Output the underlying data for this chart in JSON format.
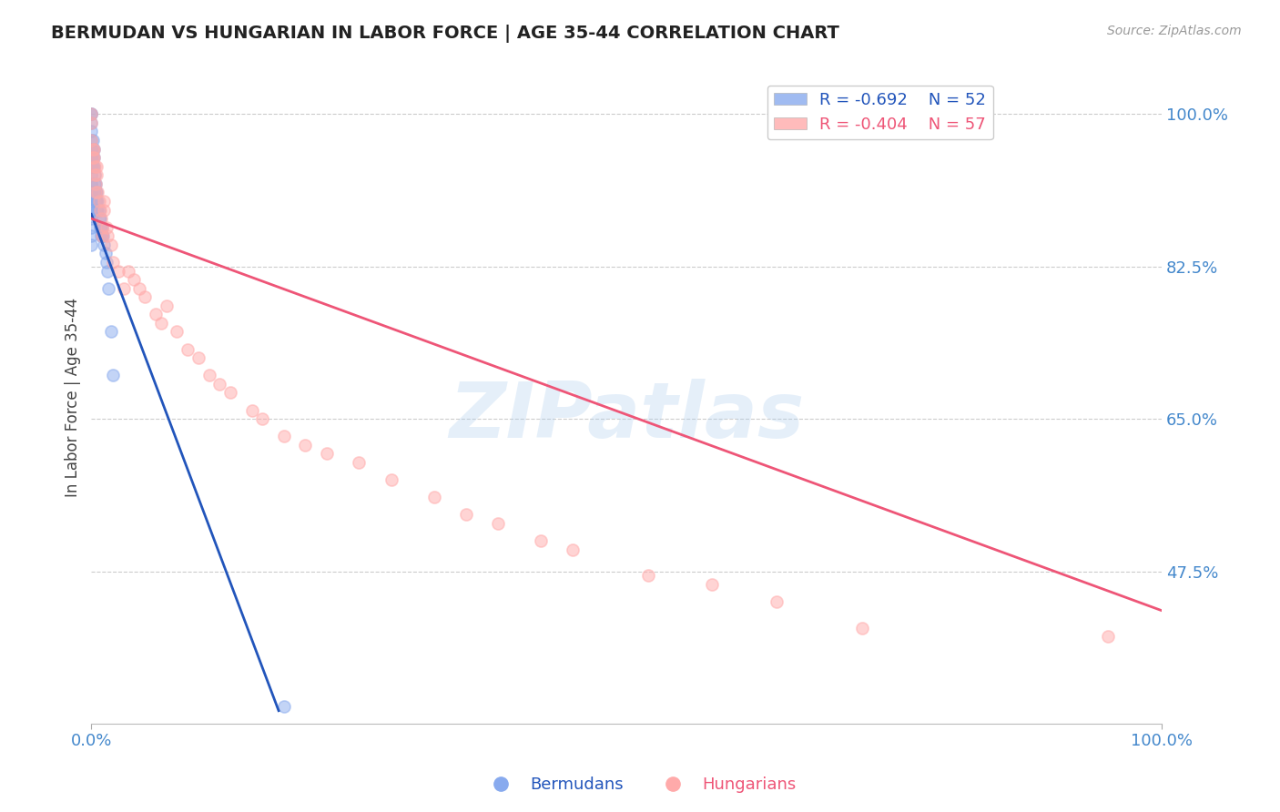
{
  "title": "BERMUDAN VS HUNGARIAN IN LABOR FORCE | AGE 35-44 CORRELATION CHART",
  "source": "Source: ZipAtlas.com",
  "ylabel": "In Labor Force | Age 35-44",
  "right_yticks": [
    0.475,
    0.65,
    0.825,
    1.0
  ],
  "right_ytick_labels": [
    "47.5%",
    "65.0%",
    "82.5%",
    "100.0%"
  ],
  "xlim": [
    0.0,
    1.0
  ],
  "ylim": [
    0.3,
    1.05
  ],
  "bermudan_color": "#88aaee",
  "hungarian_color": "#ffaaaa",
  "bermudan_line_color": "#2255bb",
  "hungarian_line_color": "#ee5577",
  "legend_bermudan_R": "-0.692",
  "legend_bermudan_N": "52",
  "legend_hungarian_R": "-0.404",
  "legend_hungarian_N": "57",
  "grid_color": "#cccccc",
  "watermark": "ZIPatlas",
  "title_color": "#222222",
  "axis_label_color": "#4488cc",
  "bermudan_x": [
    0.0,
    0.0,
    0.0,
    0.0,
    0.0,
    0.0,
    0.0,
    0.0,
    0.0,
    0.0,
    0.0,
    0.0,
    0.0,
    0.0,
    0.0,
    0.0,
    0.0,
    0.001,
    0.001,
    0.001,
    0.001,
    0.002,
    0.002,
    0.002,
    0.003,
    0.003,
    0.003,
    0.004,
    0.004,
    0.004,
    0.005,
    0.005,
    0.005,
    0.006,
    0.006,
    0.007,
    0.007,
    0.008,
    0.008,
    0.009,
    0.009,
    0.01,
    0.01,
    0.011,
    0.012,
    0.013,
    0.014,
    0.015,
    0.016,
    0.018,
    0.02,
    0.18
  ],
  "bermudan_y": [
    1.0,
    1.0,
    0.99,
    0.98,
    0.97,
    0.96,
    0.95,
    0.94,
    0.93,
    0.92,
    0.91,
    0.9,
    0.89,
    0.88,
    0.87,
    0.86,
    0.85,
    0.97,
    0.96,
    0.95,
    0.94,
    0.96,
    0.95,
    0.94,
    0.93,
    0.92,
    0.91,
    0.92,
    0.91,
    0.9,
    0.91,
    0.9,
    0.89,
    0.9,
    0.89,
    0.89,
    0.88,
    0.88,
    0.87,
    0.87,
    0.86,
    0.87,
    0.86,
    0.86,
    0.85,
    0.84,
    0.83,
    0.82,
    0.8,
    0.75,
    0.7,
    0.32
  ],
  "hungarian_x": [
    0.0,
    0.0,
    0.0,
    0.001,
    0.001,
    0.002,
    0.002,
    0.003,
    0.003,
    0.004,
    0.004,
    0.005,
    0.005,
    0.006,
    0.007,
    0.008,
    0.009,
    0.01,
    0.01,
    0.012,
    0.012,
    0.014,
    0.015,
    0.018,
    0.02,
    0.025,
    0.03,
    0.035,
    0.04,
    0.045,
    0.05,
    0.06,
    0.065,
    0.07,
    0.08,
    0.09,
    0.1,
    0.11,
    0.12,
    0.13,
    0.15,
    0.16,
    0.18,
    0.2,
    0.22,
    0.25,
    0.28,
    0.32,
    0.35,
    0.38,
    0.42,
    0.45,
    0.52,
    0.58,
    0.64,
    0.72,
    0.95
  ],
  "hungarian_y": [
    1.0,
    0.99,
    0.97,
    0.96,
    0.95,
    0.96,
    0.95,
    0.94,
    0.93,
    0.92,
    0.91,
    0.94,
    0.93,
    0.91,
    0.9,
    0.89,
    0.88,
    0.87,
    0.86,
    0.9,
    0.89,
    0.87,
    0.86,
    0.85,
    0.83,
    0.82,
    0.8,
    0.82,
    0.81,
    0.8,
    0.79,
    0.77,
    0.76,
    0.78,
    0.75,
    0.73,
    0.72,
    0.7,
    0.69,
    0.68,
    0.66,
    0.65,
    0.63,
    0.62,
    0.61,
    0.6,
    0.58,
    0.56,
    0.54,
    0.53,
    0.51,
    0.5,
    0.47,
    0.46,
    0.44,
    0.41,
    0.4
  ],
  "blue_line_x0": 0.0,
  "blue_line_y0": 0.885,
  "blue_line_x1": 0.175,
  "blue_line_y1": 0.315,
  "pink_line_x0": 0.0,
  "pink_line_y0": 0.88,
  "pink_line_x1": 1.0,
  "pink_line_y1": 0.43
}
